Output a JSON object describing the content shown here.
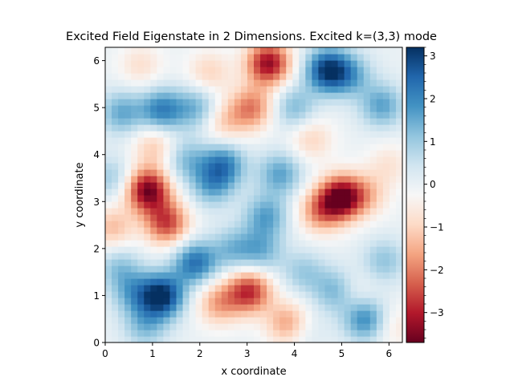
{
  "chart_data": {
    "type": "heatmap",
    "title": "Excited Field Eigenstate in 2 Dimensions. Excited k=(3,3) mode",
    "xlabel": "x coordinate",
    "ylabel": "y coordinate",
    "xlim": [
      0,
      6.283
    ],
    "ylim": [
      0,
      6.283
    ],
    "x_ticks": [
      0,
      1,
      2,
      3,
      4,
      5,
      6
    ],
    "y_ticks": [
      0,
      1,
      2,
      3,
      4,
      5,
      6
    ],
    "colormap": "RdBu",
    "colorbar": {
      "range": [
        -3.7,
        3.2
      ],
      "ticks": [
        -3,
        -2,
        -1,
        0,
        1,
        2,
        3
      ],
      "minor_step": 0.2,
      "low_color": "#67001f",
      "high_color": "#053061"
    },
    "features": [
      {
        "x": 0.9,
        "y": 3.25,
        "value": -3.6
      },
      {
        "x": 1.3,
        "y": 2.55,
        "value": -2.6
      },
      {
        "x": 0.15,
        "y": 2.45,
        "value": -1.3
      },
      {
        "x": 1.05,
        "y": 4.2,
        "value": -1.2
      },
      {
        "x": 5.0,
        "y": 3.1,
        "value": -3.6
      },
      {
        "x": 4.55,
        "y": 2.8,
        "value": -1.8
      },
      {
        "x": 5.55,
        "y": 3.15,
        "value": -1.0
      },
      {
        "x": 3.45,
        "y": 5.95,
        "value": -3.3
      },
      {
        "x": 3.1,
        "y": 5.0,
        "value": -2.0
      },
      {
        "x": 2.5,
        "y": 4.7,
        "value": -1.1
      },
      {
        "x": 2.2,
        "y": 5.75,
        "value": -1.0
      },
      {
        "x": 3.05,
        "y": 1.1,
        "value": -2.8
      },
      {
        "x": 2.4,
        "y": 0.85,
        "value": -1.6
      },
      {
        "x": 3.9,
        "y": 0.4,
        "value": -2.2
      },
      {
        "x": 4.35,
        "y": 4.35,
        "value": -1.0
      },
      {
        "x": 5.2,
        "y": 1.05,
        "value": -0.8
      },
      {
        "x": 6.1,
        "y": 0.35,
        "value": -0.7
      },
      {
        "x": 0.75,
        "y": 5.9,
        "value": -0.8
      },
      {
        "x": 6.0,
        "y": 3.8,
        "value": -0.7
      },
      {
        "x": 1.2,
        "y": 1.0,
        "value": 3.2
      },
      {
        "x": 1.9,
        "y": 1.7,
        "value": 2.3
      },
      {
        "x": 0.6,
        "y": 1.05,
        "value": 1.3
      },
      {
        "x": 0.3,
        "y": 1.6,
        "value": 1.1
      },
      {
        "x": 4.7,
        "y": 5.8,
        "value": 3.0
      },
      {
        "x": 5.2,
        "y": 5.7,
        "value": 1.3
      },
      {
        "x": 5.85,
        "y": 5.05,
        "value": 1.6
      },
      {
        "x": 1.2,
        "y": 4.95,
        "value": 2.1
      },
      {
        "x": 0.35,
        "y": 4.9,
        "value": 1.5
      },
      {
        "x": 1.95,
        "y": 5.0,
        "value": 1.4
      },
      {
        "x": 2.5,
        "y": 3.8,
        "value": 2.0
      },
      {
        "x": 2.25,
        "y": 3.35,
        "value": 1.4
      },
      {
        "x": 3.7,
        "y": 3.6,
        "value": 1.6
      },
      {
        "x": 3.4,
        "y": 2.7,
        "value": 1.6
      },
      {
        "x": 1.7,
        "y": 3.9,
        "value": 1.2
      },
      {
        "x": 5.5,
        "y": 0.5,
        "value": 2.0
      },
      {
        "x": 4.9,
        "y": 1.1,
        "value": 1.6
      },
      {
        "x": 3.3,
        "y": 1.95,
        "value": 1.3
      },
      {
        "x": 0.85,
        "y": 0.35,
        "value": 1.2
      },
      {
        "x": 2.7,
        "y": 2.0,
        "value": 1.2
      },
      {
        "x": 4.2,
        "y": 1.5,
        "value": 1.0
      },
      {
        "x": 5.9,
        "y": 1.75,
        "value": 1.1
      },
      {
        "x": 4.0,
        "y": 5.0,
        "value": 1.3
      },
      {
        "x": 0.15,
        "y": 3.5,
        "value": 1.0
      },
      {
        "x": 4.1,
        "y": 0.3,
        "value": 1.0
      }
    ]
  }
}
